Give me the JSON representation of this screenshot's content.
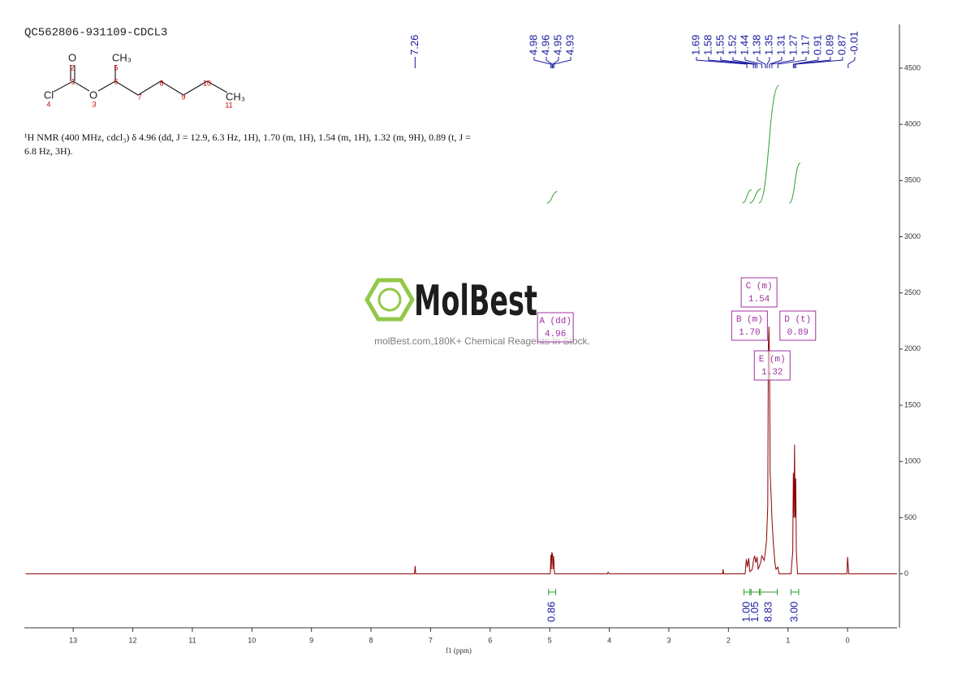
{
  "title": "QC562806-931109-CDCL3",
  "description": "¹H NMR (400 MHz, cdcl₃) δ 4.96 (dd, J = 12.9, 6.3 Hz, 1H), 1.70 (m, 1H), 1.54 (m, 1H), 1.32 (m, 9H), 0.89 (t, J = 6.8 Hz, 3H).",
  "molecule": {
    "atom_labels": [
      "O",
      "CH₃",
      "Cl",
      "O",
      "CH₃"
    ],
    "atom_numbers": [
      1,
      2,
      3,
      4,
      5,
      6,
      7,
      8,
      9,
      10,
      11
    ]
  },
  "watermark": {
    "brand": "MolBest",
    "tagline": "molBest.com,180K+ Chemical Reagents In Stock."
  },
  "chart_data": {
    "type": "line",
    "x_label": "f1 (ppm)",
    "xlim": [
      13.82,
      -0.83
    ],
    "xticks": [
      0,
      1,
      2,
      3,
      4,
      5,
      6,
      7,
      8,
      9,
      10,
      11,
      12,
      13
    ],
    "ylim": [
      -480,
      4890
    ],
    "yticks": [
      0,
      500,
      1000,
      1500,
      2000,
      2500,
      3000,
      3500,
      4000,
      4500
    ],
    "color": "#8b0000",
    "x": [
      13.8,
      7.3,
      7.27,
      7.26,
      7.25,
      5.0,
      4.99,
      4.98,
      4.975,
      4.965,
      4.955,
      4.945,
      4.935,
      4.92,
      4.03,
      4.02,
      4.0,
      2.1,
      2.09,
      2.08,
      1.72,
      1.7,
      1.68,
      1.66,
      1.64,
      1.6,
      1.58,
      1.56,
      1.54,
      1.52,
      1.5,
      1.46,
      1.44,
      1.4,
      1.38,
      1.36,
      1.34,
      1.33,
      1.32,
      1.31,
      1.3,
      1.28,
      1.27,
      1.25,
      1.22,
      1.2,
      1.17,
      1.15,
      0.95,
      0.92,
      0.91,
      0.9,
      0.89,
      0.88,
      0.87,
      0.86,
      0.84,
      0.01,
      0.0,
      -0.02,
      -0.83
    ],
    "values": [
      0,
      0,
      0,
      70,
      0,
      0,
      0,
      170,
      40,
      190,
      180,
      40,
      160,
      0,
      0,
      15,
      0,
      0,
      40,
      0,
      0,
      130,
      60,
      140,
      20,
      40,
      120,
      160,
      100,
      150,
      40,
      100,
      160,
      120,
      200,
      300,
      600,
      2000,
      2200,
      1900,
      900,
      650,
      500,
      300,
      100,
      40,
      60,
      0,
      0,
      200,
      900,
      500,
      1150,
      500,
      850,
      200,
      0,
      0,
      150,
      0,
      0
    ],
    "peak_color": "#1a1aa0",
    "peaks": [
      7.26,
      4.98,
      4.96,
      4.95,
      4.93,
      1.69,
      1.58,
      1.55,
      1.52,
      1.44,
      1.38,
      1.35,
      1.31,
      1.27,
      1.17,
      0.91,
      0.89,
      0.87,
      -0.01
    ],
    "integral_color": "#2e9e2e",
    "integrals": [
      {
        "range": [
          5.02,
          4.9
        ],
        "value": 0.86
      },
      {
        "range": [
          1.74,
          1.64
        ],
        "value": {
          "value": 1,
          "label": "1.00"
        }
      },
      {
        "range": [
          1.62,
          1.48
        ],
        "value": 1.05
      },
      {
        "range": [
          1.46,
          1.18
        ],
        "value": 8.83
      },
      {
        "range": [
          0.95,
          0.82
        ],
        "value": {
          "value": 3,
          "label": "3.00"
        }
      }
    ],
    "multiplet_color": "#a030a0",
    "multiplets": [
      {
        "label": "A (dd)",
        "shift": 4.96
      },
      {
        "label": "B (m)",
        "shift": {
          "value": 1.7,
          "label": "1.70"
        }
      },
      {
        "label": "C (m)",
        "shift": 1.54
      },
      {
        "label": "D (t)",
        "shift": 0.89
      },
      {
        "label": "E (m)",
        "shift": 1.32
      }
    ]
  }
}
